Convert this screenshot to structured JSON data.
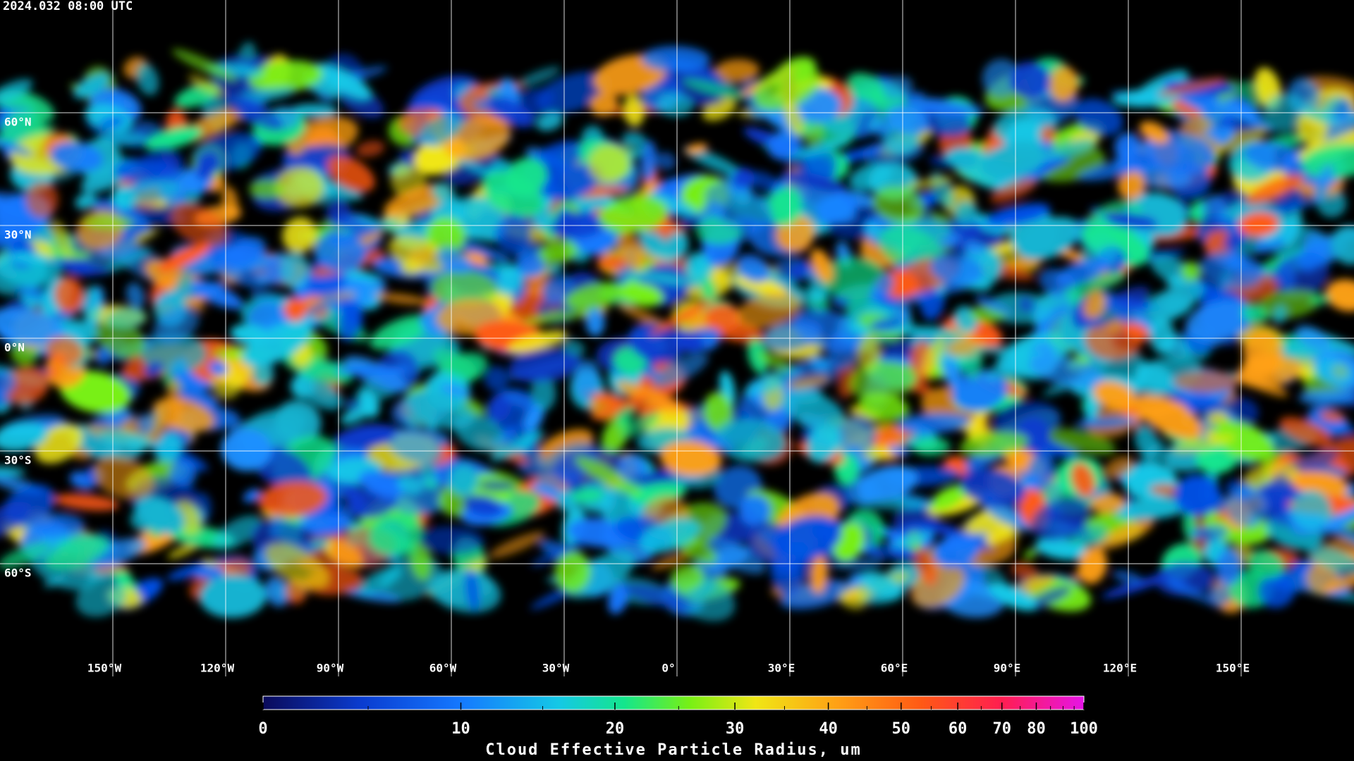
{
  "header": {
    "timestamp": "2024.032 08:00 UTC"
  },
  "map": {
    "lat_labels": [
      "60°N",
      "30°N",
      "0°N",
      "30°S",
      "60°S"
    ],
    "lon_labels": [
      "150°W",
      "120°W",
      "90°W",
      "60°W",
      "30°W",
      "0°",
      "30°E",
      "60°E",
      "90°E",
      "120°E",
      "150°E"
    ]
  },
  "colorbar": {
    "label": "Cloud Effective Particle Radius, um",
    "range": [
      0,
      100
    ],
    "ticks": [
      0,
      10,
      20,
      30,
      40,
      50,
      60,
      70,
      80,
      100
    ],
    "minor_ticks": [
      5,
      15,
      25,
      35,
      45,
      55,
      65,
      75,
      85,
      90,
      95
    ]
  }
}
